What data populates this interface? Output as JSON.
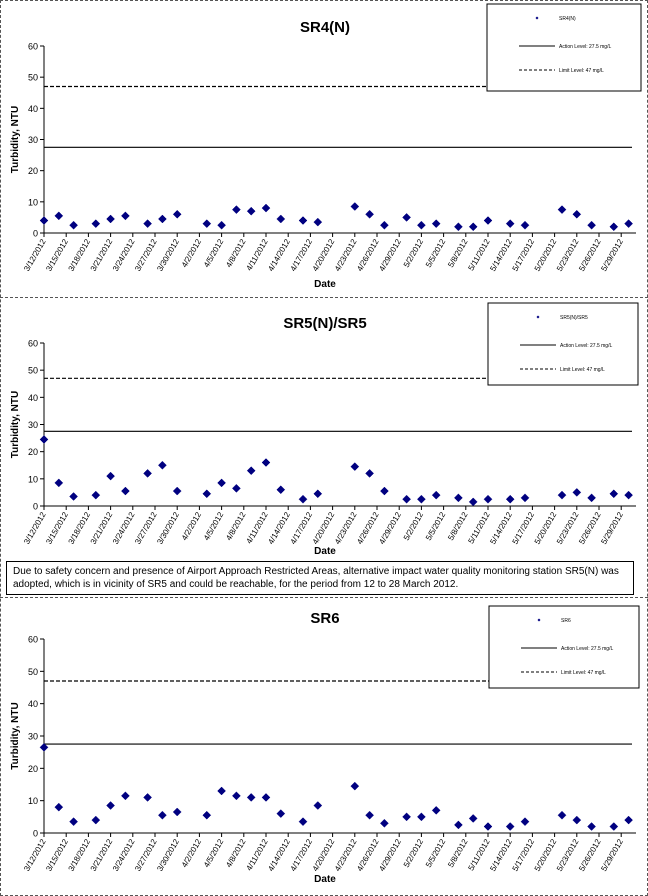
{
  "note": "Due to safety concern and presence of Airport Approach Restricted Areas, alternative impact water quality monitoring station SR5(N) was adopted, which is in vicinity of SR5 and could be reachable, for the period from 12 to 28 March 2012.",
  "chart_data": [
    {
      "type": "scatter",
      "title": "SR4(N)",
      "xlabel": "Date",
      "ylabel": "Turbidity, NTU",
      "ylim": [
        0,
        60
      ],
      "yticks": [
        0,
        10,
        20,
        30,
        40,
        50,
        60
      ],
      "xlim": [
        "3/12/2012",
        "5/31/2012"
      ],
      "xticks": [
        "3/12/2012",
        "3/15/2012",
        "3/18/2012",
        "3/21/2012",
        "3/24/2012",
        "3/27/2012",
        "3/30/2012",
        "4/2/2012",
        "4/5/2012",
        "4/8/2012",
        "4/11/2012",
        "4/14/2012",
        "4/17/2012",
        "4/20/2012",
        "4/23/2012",
        "4/26/2012",
        "4/29/2012",
        "5/2/2012",
        "5/5/2012",
        "5/8/2012",
        "5/11/2012",
        "5/14/2012",
        "5/17/2012",
        "5/20/2012",
        "5/23/2012",
        "5/26/2012",
        "5/29/2012"
      ],
      "grid": false,
      "legend_position": "top-right",
      "series": [
        {
          "name": "SR4(N)",
          "color": "#000080",
          "marker": "diamond",
          "x": [
            "3/12/2012",
            "3/14/2012",
            "3/16/2012",
            "3/19/2012",
            "3/21/2012",
            "3/23/2012",
            "3/26/2012",
            "3/28/2012",
            "3/30/2012",
            "4/3/2012",
            "4/5/2012",
            "4/7/2012",
            "4/9/2012",
            "4/11/2012",
            "4/13/2012",
            "4/16/2012",
            "4/18/2012",
            "4/23/2012",
            "4/25/2012",
            "4/27/2012",
            "4/30/2012",
            "5/2/2012",
            "5/4/2012",
            "5/7/2012",
            "5/9/2012",
            "5/11/2012",
            "5/14/2012",
            "5/16/2012",
            "5/21/2012",
            "5/23/2012",
            "5/25/2012",
            "5/28/2012",
            "5/30/2012"
          ],
          "y": [
            4.0,
            5.5,
            2.5,
            3.0,
            4.5,
            5.5,
            3.0,
            4.5,
            6.0,
            3.0,
            2.5,
            7.5,
            7.0,
            8.0,
            4.5,
            4.0,
            3.5,
            8.5,
            6.0,
            2.5,
            5.0,
            2.5,
            3.0,
            2.0,
            2.0,
            4.0,
            3.0,
            2.5,
            7.5,
            6.0,
            2.5,
            2.0,
            3.0
          ]
        }
      ],
      "reference_lines": [
        {
          "name": "Action Level: 27.5 mg/L",
          "value": 27.5,
          "style": "solid"
        },
        {
          "name": "Limit Level: 47 mg/L",
          "value": 47,
          "style": "dashed"
        }
      ]
    },
    {
      "type": "scatter",
      "title": "SR5(N)/SR5",
      "xlabel": "Date",
      "ylabel": "Turbidity, NTU",
      "ylim": [
        0,
        60
      ],
      "yticks": [
        0,
        10,
        20,
        30,
        40,
        50,
        60
      ],
      "xlim": [
        "3/12/2012",
        "5/31/2012"
      ],
      "xticks": [
        "3/12/2012",
        "3/15/2012",
        "3/18/2012",
        "3/21/2012",
        "3/24/2012",
        "3/27/2012",
        "3/30/2012",
        "4/2/2012",
        "4/5/2012",
        "4/8/2012",
        "4/11/2012",
        "4/14/2012",
        "4/17/2012",
        "4/20/2012",
        "4/23/2012",
        "4/26/2012",
        "4/29/2012",
        "5/2/2012",
        "5/5/2012",
        "5/8/2012",
        "5/11/2012",
        "5/14/2012",
        "5/17/2012",
        "5/20/2012",
        "5/23/2012",
        "5/26/2012",
        "5/29/2012"
      ],
      "grid": false,
      "legend_position": "top-right",
      "series": [
        {
          "name": "SR5(N)/SR5",
          "color": "#000080",
          "marker": "diamond",
          "x": [
            "3/12/2012",
            "3/14/2012",
            "3/16/2012",
            "3/19/2012",
            "3/21/2012",
            "3/23/2012",
            "3/26/2012",
            "3/28/2012",
            "3/30/2012",
            "4/3/2012",
            "4/5/2012",
            "4/7/2012",
            "4/9/2012",
            "4/11/2012",
            "4/13/2012",
            "4/16/2012",
            "4/18/2012",
            "4/23/2012",
            "4/25/2012",
            "4/27/2012",
            "4/30/2012",
            "5/2/2012",
            "5/4/2012",
            "5/7/2012",
            "5/9/2012",
            "5/11/2012",
            "5/14/2012",
            "5/16/2012",
            "5/21/2012",
            "5/23/2012",
            "5/25/2012",
            "5/28/2012",
            "5/30/2012"
          ],
          "y": [
            24.5,
            8.5,
            3.5,
            4.0,
            11.0,
            5.5,
            12.0,
            15.0,
            5.5,
            4.5,
            8.5,
            6.5,
            13.0,
            16.0,
            6.0,
            2.5,
            4.5,
            14.5,
            12.0,
            5.5,
            2.5,
            2.5,
            4.0,
            3.0,
            1.5,
            2.5,
            2.5,
            3.0,
            4.0,
            5.0,
            3.0,
            4.5,
            4.0
          ]
        }
      ],
      "reference_lines": [
        {
          "name": "Action Level: 27.5 mg/L",
          "value": 27.5,
          "style": "solid"
        },
        {
          "name": "Limit Level: 47 mg/L",
          "value": 47,
          "style": "dashed"
        }
      ]
    },
    {
      "type": "scatter",
      "title": "SR6",
      "xlabel": "Date",
      "ylabel": "Turbidity, NTU",
      "ylim": [
        0,
        60
      ],
      "yticks": [
        0,
        10,
        20,
        30,
        40,
        50,
        60
      ],
      "xlim": [
        "3/12/2012",
        "5/31/2012"
      ],
      "xticks": [
        "3/12/2012",
        "3/15/2012",
        "3/18/2012",
        "3/21/2012",
        "3/24/2012",
        "3/27/2012",
        "3/30/2012",
        "4/2/2012",
        "4/5/2012",
        "4/8/2012",
        "4/11/2012",
        "4/14/2012",
        "4/17/2012",
        "4/20/2012",
        "4/23/2012",
        "4/26/2012",
        "4/29/2012",
        "5/2/2012",
        "5/5/2012",
        "5/8/2012",
        "5/11/2012",
        "5/14/2012",
        "5/17/2012",
        "5/20/2012",
        "5/23/2012",
        "5/26/2012",
        "5/29/2012"
      ],
      "grid": false,
      "legend_position": "top-right",
      "series": [
        {
          "name": "SR6",
          "color": "#000080",
          "marker": "diamond",
          "x": [
            "3/12/2012",
            "3/14/2012",
            "3/16/2012",
            "3/19/2012",
            "3/21/2012",
            "3/23/2012",
            "3/26/2012",
            "3/28/2012",
            "3/30/2012",
            "4/3/2012",
            "4/5/2012",
            "4/7/2012",
            "4/9/2012",
            "4/11/2012",
            "4/13/2012",
            "4/16/2012",
            "4/18/2012",
            "4/23/2012",
            "4/25/2012",
            "4/27/2012",
            "4/30/2012",
            "5/2/2012",
            "5/4/2012",
            "5/7/2012",
            "5/9/2012",
            "5/11/2012",
            "5/14/2012",
            "5/16/2012",
            "5/21/2012",
            "5/23/2012",
            "5/25/2012",
            "5/28/2012",
            "5/30/2012"
          ],
          "y": [
            26.5,
            8.0,
            3.5,
            4.0,
            8.5,
            11.5,
            11.0,
            5.5,
            6.5,
            5.5,
            13.0,
            11.5,
            11.0,
            11.0,
            6.0,
            3.5,
            8.5,
            14.5,
            5.5,
            3.0,
            5.0,
            5.0,
            7.0,
            2.5,
            4.5,
            2.0,
            2.0,
            3.5,
            5.5,
            4.0,
            2.0,
            2.0,
            4.0
          ]
        }
      ],
      "reference_lines": [
        {
          "name": "Action Level: 27.5 mg/L",
          "value": 27.5,
          "style": "solid"
        },
        {
          "name": "Limit Level: 47 mg/L",
          "value": 47,
          "style": "dashed"
        }
      ]
    }
  ]
}
